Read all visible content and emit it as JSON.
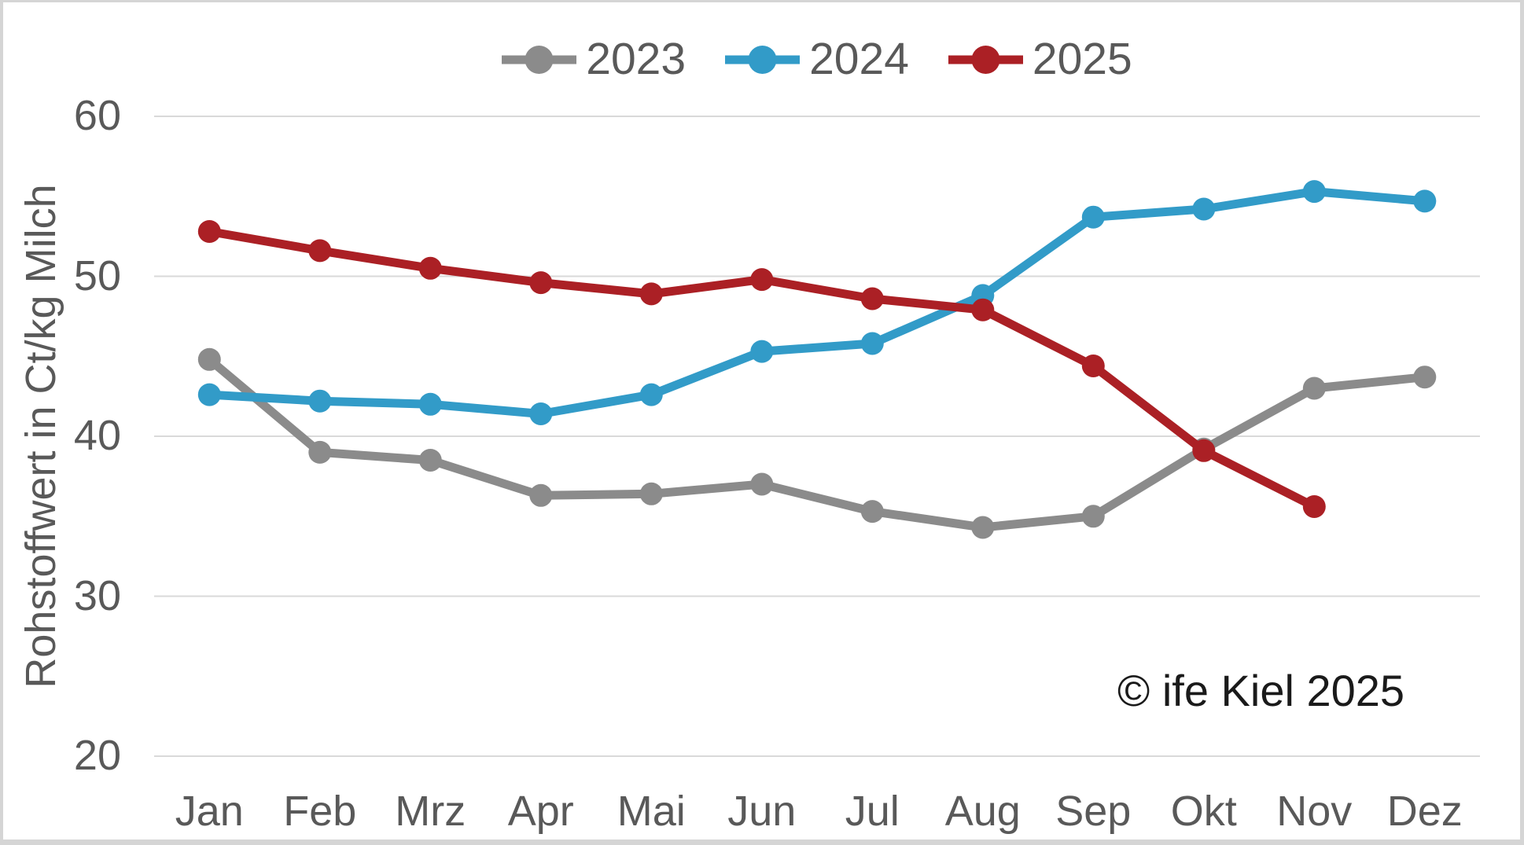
{
  "chart_data": {
    "type": "line",
    "title": "",
    "xlabel": "",
    "ylabel": "Rohstoffwert in Ct/kg Milch",
    "categories": [
      "Jan",
      "Feb",
      "Mrz",
      "Apr",
      "Mai",
      "Jun",
      "Jul",
      "Aug",
      "Sep",
      "Okt",
      "Nov",
      "Dez"
    ],
    "series": [
      {
        "name": "2023",
        "color": "#8B8B8B",
        "values": [
          44.8,
          39.0,
          38.5,
          36.3,
          36.4,
          37.0,
          35.3,
          34.3,
          35.0,
          39.2,
          43.0,
          43.7
        ]
      },
      {
        "name": "2024",
        "color": "#329BC8",
        "values": [
          42.6,
          42.2,
          42.0,
          41.4,
          42.6,
          45.3,
          45.8,
          48.8,
          53.7,
          54.2,
          55.3,
          54.7
        ]
      },
      {
        "name": "2025",
        "color": "#AB2025",
        "values": [
          52.8,
          51.6,
          50.5,
          49.6,
          48.9,
          49.8,
          48.6,
          47.9,
          44.4,
          39.1,
          35.6,
          null
        ]
      }
    ],
    "y_ticks": [
      20,
      30,
      40,
      50,
      60
    ],
    "ylim": [
      20,
      60
    ],
    "grid": true,
    "legend_position": "top-center",
    "marker": "circle"
  },
  "annotations": {
    "copyright": "© ife Kiel 2025"
  },
  "colors": {
    "axis_text": "#595959",
    "grid": "#D9D9D9",
    "copyright_text": "#1A1A1A",
    "border": "#D5D5D5",
    "background": "#FFFFFF",
    "series_2023": "#8B8B8B",
    "series_2024": "#329BC8",
    "series_2025": "#AB2025"
  }
}
